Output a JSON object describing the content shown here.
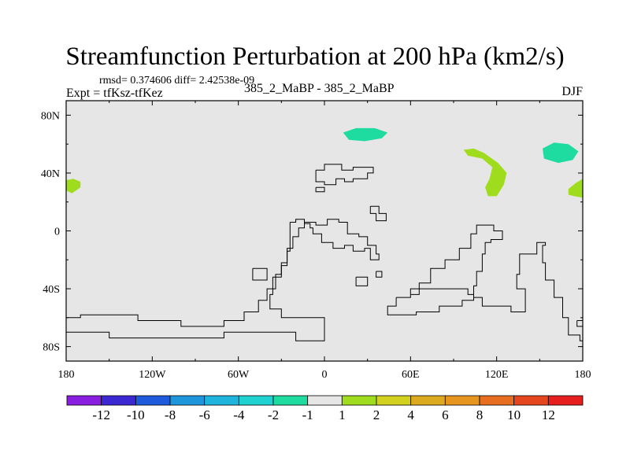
{
  "chart_data": {
    "type": "heatmap",
    "title": "Streamfunction Perturbation at 200 hPa (km2/s)",
    "stats_text": "rmsd= 0.374606 diff= 2.42538e-09",
    "expt_text": "Expt = tfKsz-tfKez",
    "subtitle": "385_2_MaBP - 385_2_MaBP",
    "season": "DJF",
    "xlim": [
      -180,
      180
    ],
    "ylim": [
      -90,
      90
    ],
    "x_ticks": [
      {
        "value": -180,
        "label": "180"
      },
      {
        "value": -120,
        "label": "120W"
      },
      {
        "value": -60,
        "label": "60W"
      },
      {
        "value": 0,
        "label": "0"
      },
      {
        "value": 60,
        "label": "60E"
      },
      {
        "value": 120,
        "label": "120E"
      },
      {
        "value": 180,
        "label": "180"
      }
    ],
    "y_ticks": [
      {
        "value": 80,
        "label": "80N"
      },
      {
        "value": 40,
        "label": "40N"
      },
      {
        "value": 0,
        "label": "0"
      },
      {
        "value": -40,
        "label": "40S"
      },
      {
        "value": -80,
        "label": "80S"
      }
    ],
    "background_color": "#e6e6e6",
    "colorbar": {
      "colors": [
        "#8a1ee0",
        "#3c28d2",
        "#1e5adc",
        "#1e96dc",
        "#1eb4dc",
        "#1ed2d2",
        "#1edca0",
        "#e6e6e6",
        "#a0dc1e",
        "#d2d21e",
        "#dcaa1e",
        "#e6961e",
        "#e66e1e",
        "#e6461e",
        "#e61e1e"
      ],
      "labels": [
        "-12",
        "-10",
        "-8",
        "-6",
        "-4",
        "-2",
        "-1",
        "1",
        "2",
        "4",
        "6",
        "8",
        "10",
        "12"
      ]
    },
    "anomalies": [
      {
        "name": "positive-anomaly-north-pacific-east",
        "category": "2",
        "color": "#a0dc1e",
        "points": [
          [
            -180,
            35
          ],
          [
            -175,
            36
          ],
          [
            -170,
            34
          ],
          [
            -170,
            30
          ],
          [
            -176,
            26
          ],
          [
            -180,
            28
          ]
        ]
      },
      {
        "name": "negative-anomaly-north-siberia",
        "category": "-1",
        "color": "#1edca0",
        "points": [
          [
            13,
            68
          ],
          [
            22,
            71
          ],
          [
            35,
            71
          ],
          [
            44,
            68
          ],
          [
            40,
            64
          ],
          [
            28,
            62
          ],
          [
            17,
            63
          ]
        ]
      },
      {
        "name": "positive-anomaly-east-asia",
        "category": "2",
        "color": "#a0dc1e",
        "points": [
          [
            97,
            56
          ],
          [
            104,
            57
          ],
          [
            111,
            54
          ],
          [
            121,
            47
          ],
          [
            127,
            40
          ],
          [
            125,
            32
          ],
          [
            120,
            24
          ],
          [
            114,
            24
          ],
          [
            112,
            30
          ],
          [
            115,
            36
          ],
          [
            117,
            44
          ],
          [
            110,
            50
          ],
          [
            100,
            52
          ]
        ]
      },
      {
        "name": "negative-anomaly-bering",
        "category": "-1",
        "color": "#1edca0",
        "points": [
          [
            152,
            57
          ],
          [
            160,
            61
          ],
          [
            170,
            60
          ],
          [
            177,
            55
          ],
          [
            173,
            49
          ],
          [
            163,
            47
          ],
          [
            153,
            50
          ]
        ]
      },
      {
        "name": "positive-anomaly-north-pacific-west",
        "category": "2",
        "color": "#a0dc1e",
        "points": [
          [
            170,
            29
          ],
          [
            175,
            33
          ],
          [
            180,
            36
          ],
          [
            180,
            23
          ],
          [
            174,
            24
          ],
          [
            170,
            25
          ]
        ]
      }
    ],
    "outlines": [
      {
        "name": "outline-north-atlantic",
        "points": [
          [
            -6,
            42
          ],
          [
            0,
            46
          ],
          [
            12,
            46
          ],
          [
            12,
            42
          ],
          [
            20,
            44
          ],
          [
            30,
            44
          ],
          [
            34,
            40
          ],
          [
            30,
            36
          ],
          [
            20,
            34
          ],
          [
            14,
            36
          ],
          [
            8,
            32
          ],
          [
            0,
            34
          ],
          [
            -6,
            38
          ],
          [
            -6,
            42
          ]
        ]
      },
      {
        "name": "outline-small-atlantic",
        "points": [
          [
            -6,
            30
          ],
          [
            0,
            30
          ],
          [
            0,
            27
          ],
          [
            -6,
            27
          ],
          [
            -6,
            30
          ]
        ]
      },
      {
        "name": "outline-central-asia",
        "points": [
          [
            32,
            17
          ],
          [
            38,
            17
          ],
          [
            38,
            12
          ],
          [
            43,
            12
          ],
          [
            43,
            7
          ],
          [
            36,
            7
          ],
          [
            36,
            12
          ],
          [
            32,
            12
          ],
          [
            32,
            17
          ]
        ]
      },
      {
        "name": "outline-africa-south-atlantic",
        "points": [
          [
            -24,
            6
          ],
          [
            -20,
            8
          ],
          [
            -14,
            5
          ],
          [
            -10,
            2
          ],
          [
            -8,
            -2
          ],
          [
            -2,
            -8
          ],
          [
            6,
            -12
          ],
          [
            14,
            -10
          ],
          [
            20,
            -14
          ],
          [
            28,
            -12
          ],
          [
            32,
            -20
          ],
          [
            38,
            -16
          ],
          [
            36,
            -10
          ],
          [
            30,
            -4
          ],
          [
            24,
            -2
          ],
          [
            16,
            6
          ],
          [
            10,
            8
          ],
          [
            2,
            4
          ],
          [
            -6,
            6
          ],
          [
            -14,
            2
          ],
          [
            -18,
            -4
          ],
          [
            -22,
            -12
          ],
          [
            -26,
            -22
          ],
          [
            -30,
            -32
          ],
          [
            -36,
            -44
          ],
          [
            -38,
            -54
          ],
          [
            -30,
            -60
          ],
          [
            -20,
            -60
          ],
          [
            -6,
            -60
          ],
          [
            0,
            -70
          ],
          [
            0,
            -76
          ],
          [
            -8,
            -76
          ],
          [
            -20,
            -70
          ],
          [
            -40,
            -70
          ],
          [
            -70,
            -74
          ],
          [
            -100,
            -74
          ],
          [
            -120,
            -74
          ],
          [
            -150,
            -70
          ],
          [
            -170,
            -70
          ],
          [
            -180,
            -72
          ]
        ]
      },
      {
        "name": "outline-south-america-pacific",
        "points": [
          [
            -180,
            -60
          ],
          [
            -170,
            -58
          ],
          [
            -150,
            -58
          ],
          [
            -130,
            -62
          ],
          [
            -110,
            -62
          ],
          [
            -100,
            -66
          ],
          [
            -90,
            -66
          ],
          [
            -80,
            -66
          ],
          [
            -70,
            -62
          ],
          [
            -56,
            -56
          ],
          [
            -46,
            -48
          ],
          [
            -40,
            -40
          ],
          [
            -34,
            -30
          ],
          [
            -30,
            -24
          ],
          [
            -26,
            -14
          ],
          [
            -24,
            -6
          ],
          [
            -24,
            6
          ]
        ]
      },
      {
        "name": "outline-small-south-atlantic-1",
        "points": [
          [
            -50,
            -26
          ],
          [
            -40,
            -26
          ],
          [
            -40,
            -34
          ],
          [
            -50,
            -34
          ],
          [
            -50,
            -26
          ]
        ]
      },
      {
        "name": "outline-small-south-atlantic-2",
        "points": [
          [
            22,
            -32
          ],
          [
            30,
            -32
          ],
          [
            30,
            -38
          ],
          [
            22,
            -38
          ],
          [
            22,
            -32
          ]
        ]
      },
      {
        "name": "outline-small-indian",
        "points": [
          [
            36,
            -28
          ],
          [
            40,
            -28
          ],
          [
            40,
            -32
          ],
          [
            36,
            -32
          ],
          [
            36,
            -28
          ]
        ]
      },
      {
        "name": "outline-indian-ocean",
        "points": [
          [
            60,
            -44
          ],
          [
            66,
            -36
          ],
          [
            74,
            -26
          ],
          [
            84,
            -20
          ],
          [
            94,
            -12
          ],
          [
            102,
            -2
          ],
          [
            106,
            4
          ],
          [
            112,
            4
          ],
          [
            118,
            0
          ],
          [
            124,
            0
          ],
          [
            124,
            -6
          ],
          [
            116,
            -8
          ],
          [
            112,
            -16
          ],
          [
            110,
            -28
          ],
          [
            106,
            -38
          ],
          [
            104,
            -46
          ],
          [
            110,
            -52
          ],
          [
            122,
            -52
          ],
          [
            130,
            -56
          ],
          [
            140,
            -52
          ],
          [
            140,
            -40
          ],
          [
            134,
            -30
          ],
          [
            136,
            -16
          ],
          [
            148,
            -8
          ],
          [
            154,
            -10
          ],
          [
            152,
            -22
          ],
          [
            154,
            -34
          ],
          [
            160,
            -46
          ],
          [
            166,
            -60
          ],
          [
            170,
            -72
          ],
          [
            178,
            -76
          ],
          [
            180,
            -74
          ]
        ]
      },
      {
        "name": "outline-southern-ocean",
        "points": [
          [
            50,
            -46
          ],
          [
            60,
            -40
          ],
          [
            76,
            -40
          ],
          [
            90,
            -40
          ],
          [
            100,
            -44
          ],
          [
            104,
            -48
          ],
          [
            96,
            -52
          ],
          [
            80,
            -56
          ],
          [
            64,
            -58
          ],
          [
            50,
            -58
          ],
          [
            44,
            -52
          ],
          [
            50,
            -46
          ]
        ]
      },
      {
        "name": "outline-far-east-south",
        "points": [
          [
            176,
            -62
          ],
          [
            180,
            -60
          ],
          [
            180,
            -66
          ],
          [
            176,
            -66
          ],
          [
            176,
            -62
          ]
        ]
      }
    ]
  }
}
